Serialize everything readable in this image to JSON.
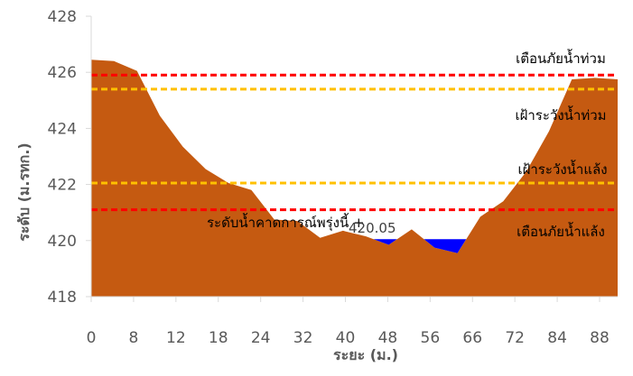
{
  "chart_data": {
    "type": "area",
    "title": "",
    "xlabel": "ระยะ (ม.)",
    "ylabel": "ระดับ (ม.รทก.)",
    "ylim": [
      418,
      428
    ],
    "yticks": [
      "418",
      "420",
      "422",
      "424",
      "426",
      "428"
    ],
    "xticks": [
      "0",
      "8",
      "12",
      "18",
      "24",
      "32",
      "40",
      "48",
      "56",
      "66",
      "72",
      "84",
      "88"
    ],
    "grid": false,
    "colors": {
      "ground": "#C55A11",
      "water": "#0000FF",
      "danger": "#FF0000",
      "warning": "#FFC000",
      "axis": "#D9D9D9"
    },
    "series": [
      {
        "kind": "ground",
        "x": [
          0,
          4,
          8,
          12,
          16,
          20,
          24,
          28,
          32,
          36,
          40,
          44,
          48,
          52,
          56,
          60,
          64,
          68,
          72,
          76,
          80,
          84,
          88,
          92
        ],
        "values": [
          426.45,
          426.4,
          426.05,
          424.45,
          423.35,
          422.55,
          422.05,
          421.8,
          420.75,
          420.7,
          420.1,
          420.35,
          420.15,
          419.85,
          420.4,
          419.75,
          419.55,
          420.85,
          421.4,
          422.45,
          423.9,
          425.75,
          425.8,
          425.75
        ]
      },
      {
        "kind": "water",
        "level": 420.05
      }
    ],
    "reference_lines": [
      {
        "label": "เตือนภัยน้ำท่วม",
        "value": 425.9,
        "color": "#FF0000"
      },
      {
        "label": "เฝ้าระวังน้ำท่วม",
        "value": 425.4,
        "color": "#FFC000"
      },
      {
        "label": "เฝ้าระวังน้ำแล้ง",
        "value": 422.05,
        "color": "#FFC000"
      },
      {
        "label": "เตือนภัยน้ำแล้ง",
        "value": 421.1,
        "color": "#FF0000"
      }
    ],
    "annotation": {
      "label": "ระดับน้ำคาดการณ์พรุ่งนี้ +",
      "value": "420.05"
    }
  }
}
